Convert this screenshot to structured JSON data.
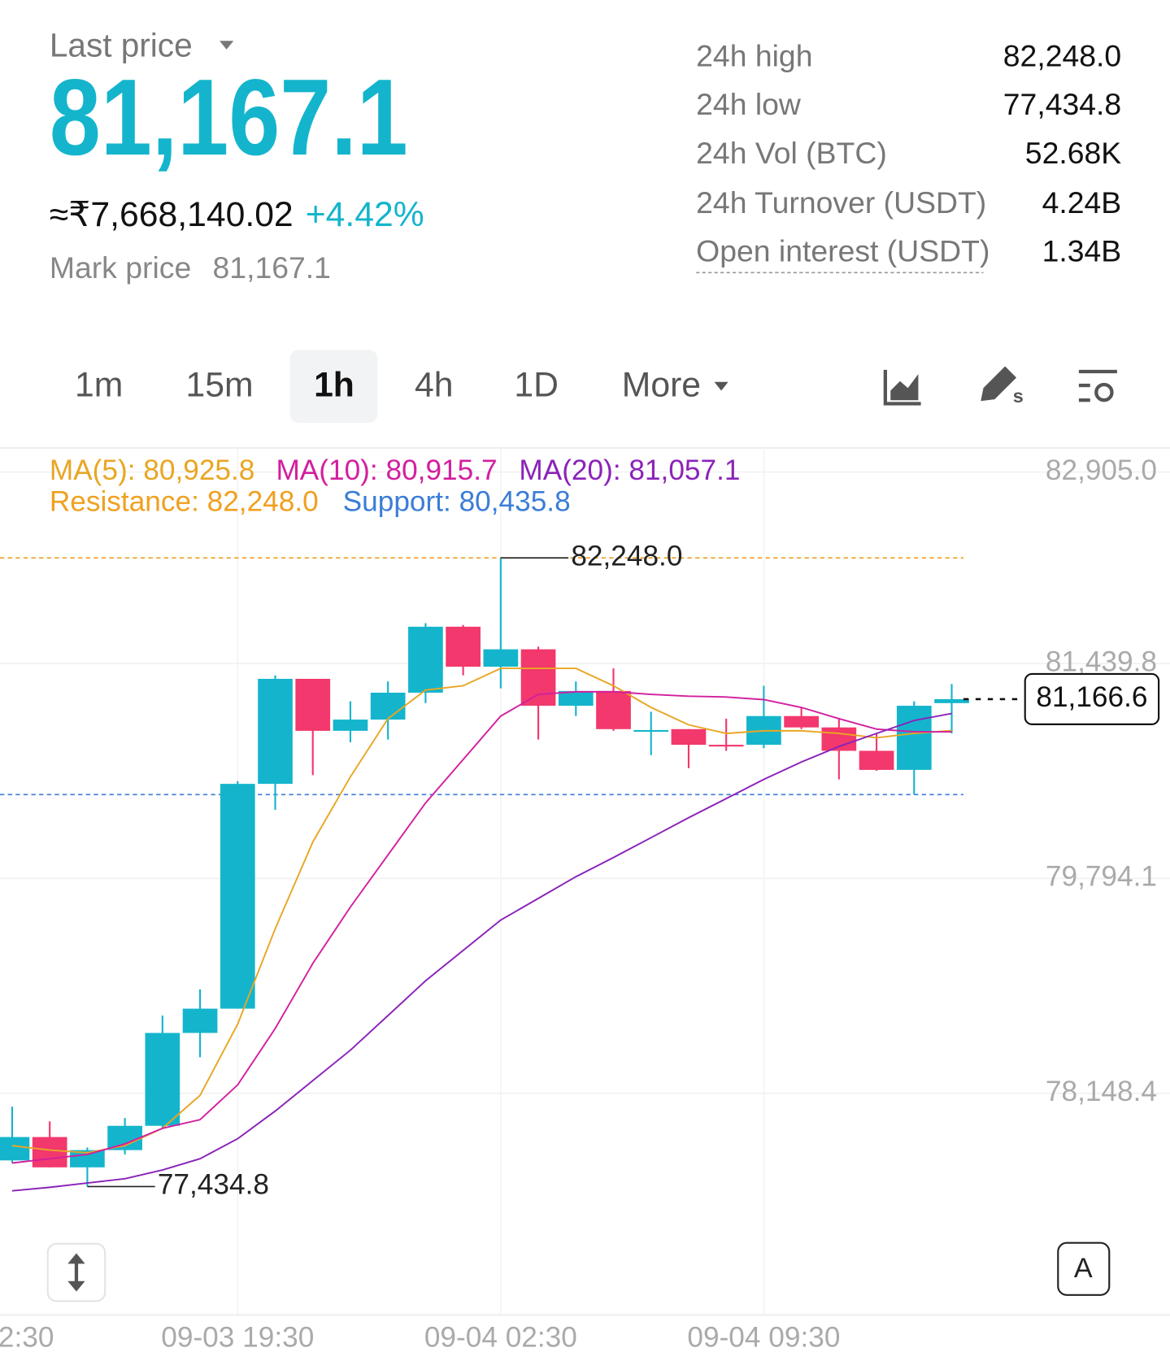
{
  "header": {
    "last_price_label": "Last price",
    "last_price": "81,167.1",
    "inr_price": "≈₹7,668,140.02",
    "change": "+4.42%",
    "mark_price_label": "Mark price",
    "mark_price": "81,167.1"
  },
  "stats": [
    {
      "label": "24h high",
      "value": "82,248.0"
    },
    {
      "label": "24h low",
      "value": "77,434.8"
    },
    {
      "label": "24h Vol (BTC)",
      "value": "52.68K"
    },
    {
      "label": "24h Turnover (USDT)",
      "value": "4.24B"
    },
    {
      "label": "Open interest (USDT)",
      "value": "1.34B"
    }
  ],
  "tabs": [
    "1m",
    "15m",
    "1h",
    "4h",
    "1D",
    "More"
  ],
  "active_tab": 2,
  "draw_icon_sub": "s",
  "a_button": "A",
  "chart_data": {
    "type": "candlestick",
    "legend": [
      {
        "text": "MA(5): 80,925.8",
        "color": "#e9a623"
      },
      {
        "text": "MA(10): 80,915.7",
        "color": "#d21f9f"
      },
      {
        "text": "MA(20): 81,057.1",
        "color": "#8b22b9"
      }
    ],
    "levels_legend": [
      {
        "text": "Resistance: 82,248.0",
        "color": "#f0a020"
      },
      {
        "text": "Support: 80,435.8",
        "color": "#3b7dd8"
      }
    ],
    "resistance": 82248.0,
    "support": 80435.8,
    "categories": [
      null,
      null,
      null,
      null,
      null,
      null,
      "09-03 19:30",
      null,
      null,
      null,
      null,
      null,
      null,
      "09-04 02:30",
      null,
      null,
      null,
      null,
      null,
      null,
      "09-04 09:30",
      null,
      null,
      null,
      null,
      null
    ],
    "x_edge_label": "2:30",
    "open": [
      77635,
      77814,
      77582,
      77714,
      77900,
      78611,
      78797,
      80518,
      81322,
      80924,
      81010,
      81216,
      81721,
      81415,
      81548,
      81116,
      81229,
      80917,
      80937,
      80817,
      80817,
      81037,
      80950,
      80771,
      80625,
      81136
    ],
    "high": [
      78047,
      77934,
      77734,
      77960,
      78744,
      78944,
      80538,
      81349,
      81322,
      81150,
      81302,
      81748,
      81734,
      82248,
      81568,
      81302,
      81402,
      81070,
      80937,
      81017,
      81269,
      81103,
      81017,
      80904,
      81150,
      81283
    ],
    "low": [
      77615,
      77582,
      77434.8,
      77681,
      77881,
      78425,
      78797,
      80319,
      80585,
      80837,
      80857,
      81136,
      81349,
      81249,
      80857,
      81037,
      80924,
      80738,
      80638,
      80771,
      80791,
      80937,
      80552,
      80618,
      80436,
      80904
    ],
    "close": [
      77814,
      77582,
      77714,
      77900,
      78611,
      78797,
      80518,
      81322,
      80924,
      81010,
      81216,
      81721,
      81415,
      81548,
      81116,
      81229,
      80937,
      80930,
      80817,
      80804,
      81037,
      80950,
      80771,
      80625,
      81116,
      81166.6
    ],
    "up_color": "#14b5cc",
    "down_color": "#f2386c",
    "ma": [
      {
        "color": "#e9a623",
        "values": [
          77748,
          77714,
          77694,
          77748,
          77881,
          78133,
          78678,
          79409,
          80073,
          80572,
          81017,
          81236,
          81269,
          81402,
          81402,
          81402,
          81269,
          81103,
          80970,
          80904,
          80924,
          80924,
          80904,
          80871,
          80904,
          80925.8
        ]
      },
      {
        "color": "#d21f9f",
        "values": [
          77615,
          77648,
          77681,
          77761,
          77881,
          77947,
          78213,
          78645,
          79143,
          79575,
          79974,
          80372,
          80704,
          81037,
          81203,
          81223,
          81223,
          81203,
          81189,
          81183,
          81163,
          81103,
          81017,
          80937,
          80917,
          80915.7
        ]
      },
      {
        "color": "#8b22b9",
        "values": [
          77402,
          77429,
          77462,
          77495,
          77562,
          77648,
          77801,
          78013,
          78246,
          78479,
          78744,
          79010,
          79243,
          79475,
          79641,
          79807,
          79954,
          80106,
          80259,
          80405,
          80552,
          80685,
          80804,
          80904,
          81003,
          81057.1
        ]
      }
    ],
    "annotations": [
      {
        "value": 82248.0,
        "label": "82,248.0"
      },
      {
        "value": 77434.8,
        "label": "77,434.8"
      }
    ],
    "last_price": {
      "value": 81166.6,
      "label": "81,166.6"
    },
    "ylim": [
      76452,
      83090
    ],
    "yticks": [
      {
        "value": 82905.0,
        "label": "82,905.0"
      },
      {
        "value": 81439.8,
        "label": "81,439.8"
      },
      {
        "value": 79794.1,
        "label": "79,794.1"
      },
      {
        "value": 78148.4,
        "label": "78,148.4"
      }
    ],
    "grid": true
  }
}
